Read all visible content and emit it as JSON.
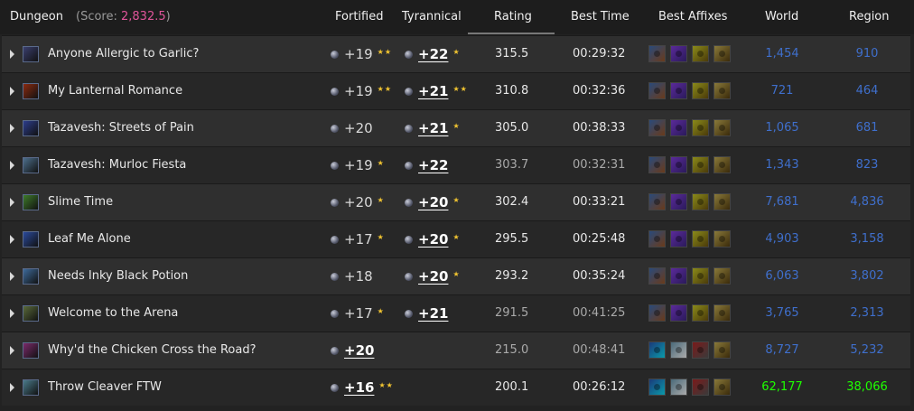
{
  "header": {
    "dungeon": "Dungeon",
    "score_open": "(Score: ",
    "score_value": "2,832.5",
    "score_close": ")",
    "fortified": "Fortified",
    "tyrannical": "Tyrannical",
    "rating": "Rating",
    "best_time": "Best Time",
    "best_affixes": "Best Affixes",
    "world": "World",
    "region": "Region"
  },
  "colors": {
    "score": "#e0559a",
    "rank_blue": "#3f6fcc",
    "rank_green": "#1eff00",
    "star": "#f2c531"
  },
  "rows": [
    {
      "name": "Anyone Allergic to Garlic?",
      "icon": "dungeon-garlic-icon",
      "icon_color": "#3a3f6e",
      "fortified": "+19",
      "fort_stars": "★★",
      "fort_best": false,
      "tyrannical": "+22",
      "tyr_stars": "★",
      "tyr_best": true,
      "rating": "315.5",
      "rating_dim": false,
      "time": "00:29:32",
      "time_dim": false,
      "affixes": [
        "tyrannical-icon",
        "spiteful-icon",
        "raging-icon",
        "bursting-icon"
      ],
      "world": "1,454",
      "region": "910",
      "rank_color": "#3f6fcc"
    },
    {
      "name": "My Lanternal Romance",
      "icon": "dungeon-lantern-icon",
      "icon_color": "#8a2a10",
      "fortified": "+19",
      "fort_stars": "★★",
      "fort_best": false,
      "tyrannical": "+21",
      "tyr_stars": "★★",
      "tyr_best": true,
      "rating": "310.8",
      "rating_dim": false,
      "time": "00:32:36",
      "time_dim": false,
      "affixes": [
        "tyrannical-icon",
        "spiteful-icon",
        "raging-icon",
        "bursting-icon"
      ],
      "world": "721",
      "region": "464",
      "rank_color": "#3f6fcc"
    },
    {
      "name": "Tazavesh: Streets of Pain",
      "icon": "dungeon-streets-icon",
      "icon_color": "#2c3d8c",
      "fortified": "+20",
      "fort_stars": "",
      "fort_best": false,
      "tyrannical": "+21",
      "tyr_stars": "★",
      "tyr_best": true,
      "rating": "305.0",
      "rating_dim": false,
      "time": "00:38:33",
      "time_dim": false,
      "affixes": [
        "tyrannical-icon",
        "spiteful-icon",
        "raging-icon",
        "bursting-icon"
      ],
      "world": "1,065",
      "region": "681",
      "rank_color": "#3f6fcc"
    },
    {
      "name": "Tazavesh: Murloc Fiesta",
      "icon": "dungeon-murloc-icon",
      "icon_color": "#4d6f8c",
      "fortified": "+19",
      "fort_stars": "★",
      "fort_best": false,
      "tyrannical": "+22",
      "tyr_stars": "",
      "tyr_best": true,
      "rating": "303.7",
      "rating_dim": true,
      "time": "00:32:31",
      "time_dim": true,
      "affixes": [
        "tyrannical-icon",
        "spiteful-icon",
        "raging-icon",
        "bursting-icon"
      ],
      "world": "1,343",
      "region": "823",
      "rank_color": "#3f6fcc"
    },
    {
      "name": "Slime Time",
      "icon": "dungeon-slime-icon",
      "icon_color": "#3e7a2a",
      "fortified": "+20",
      "fort_stars": "★",
      "fort_best": false,
      "tyrannical": "+20",
      "tyr_stars": "★",
      "tyr_best": true,
      "rating": "302.4",
      "rating_dim": false,
      "time": "00:33:21",
      "time_dim": false,
      "affixes": [
        "tyrannical-icon",
        "spiteful-icon",
        "raging-icon",
        "bursting-icon"
      ],
      "world": "7,681",
      "region": "4,836",
      "rank_color": "#3f6fcc"
    },
    {
      "name": "Leaf Me Alone",
      "icon": "dungeon-leaf-icon",
      "icon_color": "#2a4a9c",
      "fortified": "+17",
      "fort_stars": "★",
      "fort_best": false,
      "tyrannical": "+20",
      "tyr_stars": "★",
      "tyr_best": true,
      "rating": "295.5",
      "rating_dim": false,
      "time": "00:25:48",
      "time_dim": false,
      "affixes": [
        "tyrannical-icon",
        "spiteful-icon",
        "raging-icon",
        "bursting-icon"
      ],
      "world": "4,903",
      "region": "3,158",
      "rank_color": "#3f6fcc"
    },
    {
      "name": "Needs Inky Black Potion",
      "icon": "dungeon-ink-icon",
      "icon_color": "#3d6a9a",
      "fortified": "+18",
      "fort_stars": "",
      "fort_best": false,
      "tyrannical": "+20",
      "tyr_stars": "★",
      "tyr_best": true,
      "rating": "293.2",
      "rating_dim": false,
      "time": "00:35:24",
      "time_dim": false,
      "affixes": [
        "tyrannical-icon",
        "spiteful-icon",
        "raging-icon",
        "bursting-icon"
      ],
      "world": "6,063",
      "region": "3,802",
      "rank_color": "#3f6fcc"
    },
    {
      "name": "Welcome to the Arena",
      "icon": "dungeon-arena-icon",
      "icon_color": "#5a6a3a",
      "fortified": "+17",
      "fort_stars": "★",
      "fort_best": false,
      "tyrannical": "+21",
      "tyr_stars": "",
      "tyr_best": true,
      "rating": "291.5",
      "rating_dim": true,
      "time": "00:41:25",
      "time_dim": true,
      "affixes": [
        "tyrannical-icon",
        "spiteful-icon",
        "raging-icon",
        "bursting-icon"
      ],
      "world": "3,765",
      "region": "2,313",
      "rank_color": "#3f6fcc"
    },
    {
      "name": "Why'd the Chicken Cross the Road?",
      "icon": "dungeon-chicken-icon",
      "icon_color": "#7a2a6a",
      "fortified": "+20",
      "fort_stars": "",
      "fort_best": true,
      "tyrannical": "",
      "tyr_stars": "",
      "tyr_best": false,
      "rating": "215.0",
      "rating_dim": true,
      "time": "00:48:41",
      "time_dim": true,
      "affixes": [
        "fortified-icon",
        "sanguine-icon",
        "necrotic-icon",
        "bursting-icon"
      ],
      "world": "8,727",
      "region": "5,232",
      "rank_color": "#3f6fcc"
    },
    {
      "name": "Throw Cleaver FTW",
      "icon": "dungeon-cleaver-icon",
      "icon_color": "#4a7a8a",
      "fortified": "+16",
      "fort_stars": "★★",
      "fort_best": true,
      "tyrannical": "",
      "tyr_stars": "",
      "tyr_best": false,
      "rating": "200.1",
      "rating_dim": false,
      "time": "00:26:12",
      "time_dim": false,
      "affixes": [
        "fortified-icon",
        "sanguine-icon",
        "necrotic-icon",
        "bursting-icon"
      ],
      "world": "62,177",
      "region": "38,066",
      "rank_color": "#1eff00"
    }
  ]
}
